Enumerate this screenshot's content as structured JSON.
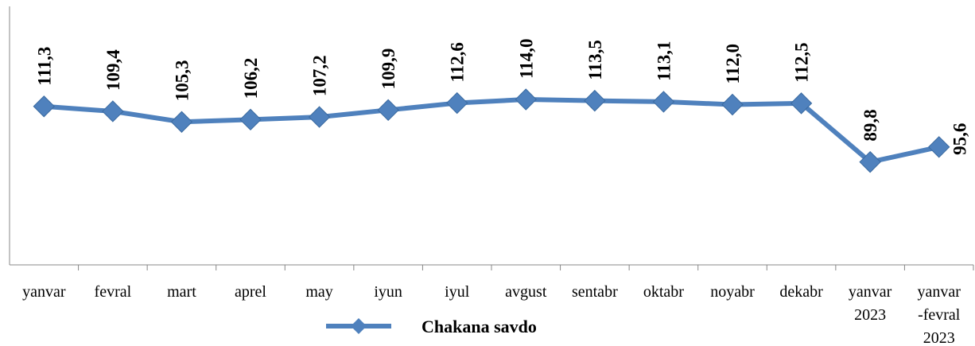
{
  "chart_data": {
    "type": "line",
    "categories": [
      "yanvar",
      "fevral",
      "mart",
      "aprel",
      "may",
      "iyun",
      "iyul",
      "avgust",
      "sentabr",
      "oktabr",
      "noyabr",
      "dekabr",
      "yanvar\n2023",
      "yanvar\n-fevral\n2023"
    ],
    "series": [
      {
        "name": "Chakana savdo",
        "color": "#4f81bd",
        "values": [
          111.3,
          109.4,
          105.3,
          106.2,
          107.2,
          109.9,
          112.6,
          114.0,
          113.5,
          113.1,
          112.0,
          112.5,
          89.8,
          95.6
        ],
        "value_labels": [
          "111,3",
          "109,4",
          "105,3",
          "106,2",
          "107,2",
          "109,9",
          "112,6",
          "114,0",
          "113,5",
          "113,1",
          "112,0",
          "112,5",
          "89,8",
          "95,6"
        ]
      }
    ],
    "ylim": [
      50,
      150
    ]
  }
}
